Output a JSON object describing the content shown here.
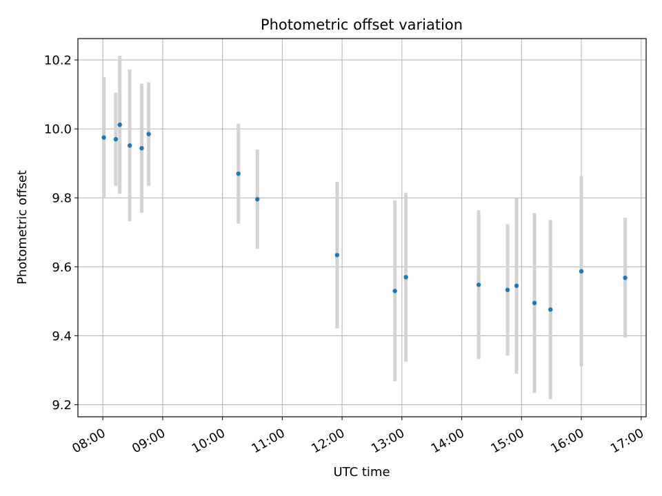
{
  "chart_data": {
    "type": "scatter",
    "title": "Photometric offset variation",
    "xlabel": "UTC time",
    "ylabel": "Photometric offset",
    "xlim": [
      "07:35",
      "17:05"
    ],
    "ylim": [
      9.165,
      10.262
    ],
    "x_ticks": [
      "08:00",
      "09:00",
      "10:00",
      "11:00",
      "12:00",
      "13:00",
      "14:00",
      "15:00",
      "16:00",
      "17:00"
    ],
    "y_ticks": [
      9.2,
      9.4,
      9.6,
      9.8,
      10.0,
      10.2
    ],
    "y_tick_labels": [
      "9.2",
      "9.4",
      "9.6",
      "9.8",
      "10.0",
      "10.2"
    ],
    "grid": true,
    "colors": {
      "points": "#1f77b4",
      "error_bars": "#d3d3d3",
      "grid": "#b0b0b0"
    },
    "points": [
      {
        "x": "08:01",
        "y": 9.975,
        "err": 0.175
      },
      {
        "x": "08:13",
        "y": 9.97,
        "err": 0.135
      },
      {
        "x": "08:17",
        "y": 10.012,
        "err": 0.2
      },
      {
        "x": "08:27",
        "y": 9.952,
        "err": 0.22
      },
      {
        "x": "08:39",
        "y": 9.944,
        "err": 0.187
      },
      {
        "x": "08:46",
        "y": 9.985,
        "err": 0.15
      },
      {
        "x": "10:16",
        "y": 9.87,
        "err": 0.145
      },
      {
        "x": "10:35",
        "y": 9.796,
        "err": 0.144
      },
      {
        "x": "11:55",
        "y": 9.634,
        "err": 0.213
      },
      {
        "x": "12:53",
        "y": 9.53,
        "err": 0.262
      },
      {
        "x": "13:04",
        "y": 9.57,
        "err": 0.245
      },
      {
        "x": "14:17",
        "y": 9.548,
        "err": 0.216
      },
      {
        "x": "14:46",
        "y": 9.533,
        "err": 0.191
      },
      {
        "x": "14:55",
        "y": 9.545,
        "err": 0.255
      },
      {
        "x": "15:13",
        "y": 9.495,
        "err": 0.261
      },
      {
        "x": "15:29",
        "y": 9.476,
        "err": 0.26
      },
      {
        "x": "16:00",
        "y": 9.587,
        "err": 0.276
      },
      {
        "x": "16:44",
        "y": 9.568,
        "err": 0.174
      }
    ]
  }
}
